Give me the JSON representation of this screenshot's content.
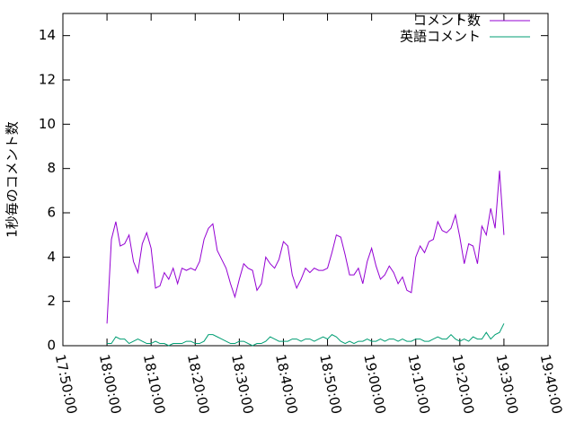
{
  "chart_data": {
    "type": "line",
    "y_label": "1秒毎のコメント数",
    "x": [
      "18:00:00",
      "18:01:00",
      "18:02:00",
      "18:03:00",
      "18:04:00",
      "18:05:00",
      "18:06:00",
      "18:07:00",
      "18:08:00",
      "18:09:00",
      "18:10:00",
      "18:11:00",
      "18:12:00",
      "18:13:00",
      "18:14:00",
      "18:15:00",
      "18:16:00",
      "18:17:00",
      "18:18:00",
      "18:19:00",
      "18:20:00",
      "18:21:00",
      "18:22:00",
      "18:23:00",
      "18:24:00",
      "18:25:00",
      "18:26:00",
      "18:27:00",
      "18:28:00",
      "18:29:00",
      "18:30:00",
      "18:31:00",
      "18:32:00",
      "18:33:00",
      "18:34:00",
      "18:35:00",
      "18:36:00",
      "18:37:00",
      "18:38:00",
      "18:39:00",
      "18:40:00",
      "18:41:00",
      "18:42:00",
      "18:43:00",
      "18:44:00",
      "18:45:00",
      "18:46:00",
      "18:47:00",
      "18:48:00",
      "18:49:00",
      "18:50:00",
      "18:51:00",
      "18:52:00",
      "18:53:00",
      "18:54:00",
      "18:55:00",
      "18:56:00",
      "18:57:00",
      "18:58:00",
      "18:59:00",
      "19:00:00",
      "19:01:00",
      "19:02:00",
      "19:03:00",
      "19:04:00",
      "19:05:00",
      "19:06:00",
      "19:07:00",
      "19:08:00",
      "19:09:00",
      "19:10:00",
      "19:11:00",
      "19:12:00",
      "19:13:00",
      "19:14:00",
      "19:15:00",
      "19:16:00",
      "19:17:00",
      "19:18:00",
      "19:19:00",
      "19:20:00",
      "19:21:00",
      "19:22:00",
      "19:23:00",
      "19:24:00",
      "19:25:00",
      "19:26:00",
      "19:27:00",
      "19:28:00",
      "19:29:00",
      "19:30:00"
    ],
    "series": [
      {
        "name": "コメント数",
        "color": "#9400d3",
        "values": [
          1.0,
          4.8,
          5.6,
          4.5,
          4.6,
          5.0,
          3.8,
          3.3,
          4.6,
          5.1,
          4.4,
          2.6,
          2.7,
          3.3,
          3.0,
          3.5,
          2.8,
          3.5,
          3.4,
          3.5,
          3.4,
          3.8,
          4.8,
          5.3,
          5.5,
          4.3,
          3.9,
          3.5,
          2.8,
          2.2,
          3.0,
          3.7,
          3.5,
          3.4,
          2.5,
          2.8,
          4.0,
          3.7,
          3.5,
          3.9,
          4.7,
          4.5,
          3.2,
          2.6,
          3.0,
          3.5,
          3.3,
          3.5,
          3.4,
          3.4,
          3.5,
          4.2,
          5.0,
          4.9,
          4.1,
          3.2,
          3.2,
          3.5,
          2.8,
          3.8,
          4.4,
          3.6,
          3.0,
          3.2,
          3.6,
          3.3,
          2.8,
          3.1,
          2.5,
          2.4,
          4.0,
          4.5,
          4.2,
          4.7,
          4.8,
          5.6,
          5.2,
          5.1,
          5.3,
          5.9,
          4.9,
          3.7,
          4.6,
          4.5,
          3.7,
          5.4,
          5.0,
          6.2,
          5.3,
          7.9,
          5.0
        ]
      },
      {
        "name": "英語コメント",
        "color": "#009e73",
        "values": [
          0.1,
          0.1,
          0.4,
          0.3,
          0.3,
          0.1,
          0.2,
          0.3,
          0.2,
          0.1,
          0.1,
          0.2,
          0.1,
          0.1,
          0.0,
          0.1,
          0.1,
          0.1,
          0.2,
          0.2,
          0.1,
          0.1,
          0.2,
          0.5,
          0.5,
          0.4,
          0.3,
          0.2,
          0.1,
          0.1,
          0.2,
          0.2,
          0.1,
          0.0,
          0.1,
          0.1,
          0.2,
          0.4,
          0.3,
          0.2,
          0.2,
          0.2,
          0.3,
          0.3,
          0.2,
          0.3,
          0.3,
          0.2,
          0.3,
          0.4,
          0.3,
          0.5,
          0.4,
          0.2,
          0.1,
          0.2,
          0.1,
          0.2,
          0.2,
          0.3,
          0.2,
          0.2,
          0.3,
          0.2,
          0.3,
          0.3,
          0.2,
          0.3,
          0.2,
          0.2,
          0.3,
          0.3,
          0.2,
          0.2,
          0.3,
          0.4,
          0.3,
          0.3,
          0.5,
          0.3,
          0.2,
          0.3,
          0.2,
          0.4,
          0.3,
          0.3,
          0.6,
          0.3,
          0.5,
          0.6,
          1.0
        ]
      }
    ],
    "xlim": [
      "17:50:00",
      "19:40:00"
    ],
    "xticks": [
      "17:50:00",
      "18:00:00",
      "18:10:00",
      "18:20:00",
      "18:30:00",
      "18:40:00",
      "18:50:00",
      "19:00:00",
      "19:10:00",
      "19:20:00",
      "19:30:00",
      "19:40:00"
    ],
    "ylim": [
      0,
      15
    ],
    "yticks": [
      0,
      2,
      4,
      6,
      8,
      10,
      12,
      14
    ],
    "legend": "top-right",
    "grid": false
  }
}
